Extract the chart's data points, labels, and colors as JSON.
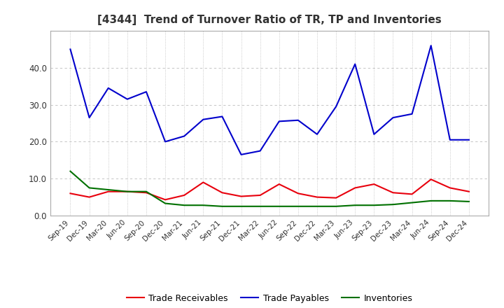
{
  "title": "[4344]  Trend of Turnover Ratio of TR, TP and Inventories",
  "x_labels": [
    "Sep-19",
    "Dec-19",
    "Mar-20",
    "Jun-20",
    "Sep-20",
    "Dec-20",
    "Mar-21",
    "Jun-21",
    "Sep-21",
    "Dec-21",
    "Mar-22",
    "Jun-22",
    "Sep-22",
    "Dec-22",
    "Mar-23",
    "Jun-23",
    "Sep-23",
    "Dec-23",
    "Mar-24",
    "Jun-24",
    "Sep-24",
    "Dec-24"
  ],
  "trade_receivables": [
    6.0,
    5.0,
    6.5,
    6.5,
    6.2,
    4.3,
    5.5,
    9.0,
    6.2,
    5.2,
    5.5,
    8.5,
    6.0,
    5.0,
    4.8,
    7.5,
    8.5,
    6.2,
    5.8,
    9.8,
    7.5,
    6.5
  ],
  "trade_payables": [
    45.0,
    26.5,
    34.5,
    31.5,
    33.5,
    20.0,
    21.5,
    26.0,
    26.8,
    16.5,
    17.5,
    25.5,
    25.8,
    22.0,
    29.5,
    41.0,
    22.0,
    26.5,
    27.5,
    46.0,
    20.5,
    20.5
  ],
  "inventories": [
    12.0,
    7.5,
    7.0,
    6.5,
    6.5,
    3.3,
    2.8,
    2.8,
    2.5,
    2.5,
    2.5,
    2.5,
    2.5,
    2.5,
    2.5,
    2.8,
    2.8,
    3.0,
    3.5,
    4.0,
    4.0,
    3.8
  ],
  "ylim": [
    0.0,
    50.0
  ],
  "yticks": [
    0.0,
    10.0,
    20.0,
    30.0,
    40.0
  ],
  "line_colors": {
    "trade_receivables": "#e8000d",
    "trade_payables": "#0000cc",
    "inventories": "#007000"
  },
  "legend_labels": [
    "Trade Receivables",
    "Trade Payables",
    "Inventories"
  ],
  "background_color": "#ffffff",
  "grid_color": "#bbbbbb",
  "title_color": "#333333"
}
